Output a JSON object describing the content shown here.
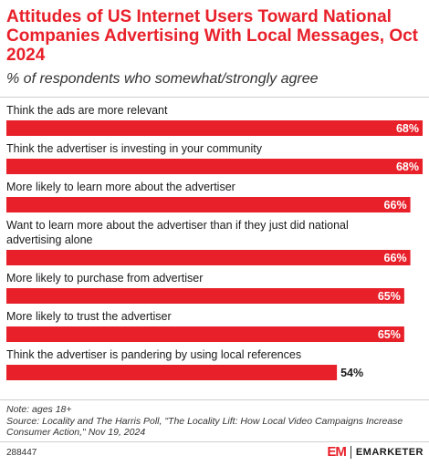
{
  "header": {
    "title": "Attitudes of US Internet Users Toward National Companies Advertising With Local Messages, Oct 2024",
    "subtitle": "% of respondents who somewhat/strongly agree"
  },
  "chart_data": {
    "type": "bar",
    "orientation": "horizontal",
    "title": "Attitudes of US Internet Users Toward National Companies Advertising With Local Messages, Oct 2024",
    "subtitle": "% of respondents who somewhat/strongly agree",
    "categories": [
      [
        "Think the ads are more relevant"
      ],
      [
        "Think the advertiser is investing in your community"
      ],
      [
        "More likely to learn more about the advertiser"
      ],
      [
        "Want to learn more about the advertiser than if they just did national",
        "advertising alone"
      ],
      [
        "More likely to purchase from advertiser"
      ],
      [
        "More likely to trust the advertiser"
      ],
      [
        "Think the advertiser is pandering by using local references"
      ]
    ],
    "values": [
      68,
      68,
      66,
      66,
      65,
      65,
      54
    ],
    "value_labels": [
      "68%",
      "68%",
      "66%",
      "66%",
      "65%",
      "65%",
      "54%"
    ],
    "unit": "%",
    "xlim": [
      0,
      68
    ],
    "grid": false,
    "legend": "none",
    "bar_color": "#e8202a"
  },
  "footer": {
    "note": "Note: ages 18+",
    "source": "Source: Locality and The Harris Poll, \"The Locality Lift: How Local Video Campaigns Increase Consumer Action,\" Nov 19, 2024",
    "chart_id": "288447",
    "logo_mark": "EM",
    "logo_text": "EMARKETER"
  }
}
